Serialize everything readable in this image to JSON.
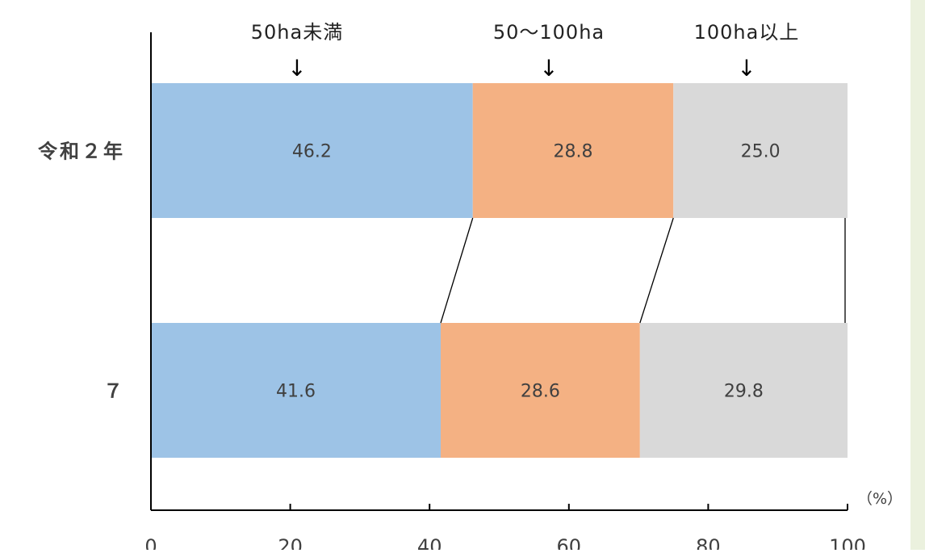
{
  "chart_data": {
    "type": "bar",
    "orientation": "horizontal",
    "stacked": true,
    "categories": [
      "令和２年",
      "７"
    ],
    "series": [
      {
        "name": "50ha未満",
        "values": [
          46.2,
          41.6
        ],
        "color": "#9dc3e6"
      },
      {
        "name": "50～100ha",
        "values": [
          28.8,
          28.6
        ],
        "color": "#f4b183"
      },
      {
        "name": "100ha以上",
        "values": [
          25.0,
          29.8
        ],
        "color": "#d9d9d9"
      }
    ],
    "data_labels": [
      [
        "46.2",
        "28.8",
        "25.0"
      ],
      [
        "41.6",
        "28.6",
        "29.8"
      ]
    ],
    "x_ticks": [
      "0",
      "20",
      "40",
      "60",
      "80",
      "100"
    ],
    "xlim": [
      0,
      100
    ],
    "unit_label": "（%）",
    "grid": false,
    "series_connector_lines": true,
    "legend": "top, category names with down arrows",
    "legend_arrow": "↓",
    "right_strip_color": "#ebf1de"
  }
}
